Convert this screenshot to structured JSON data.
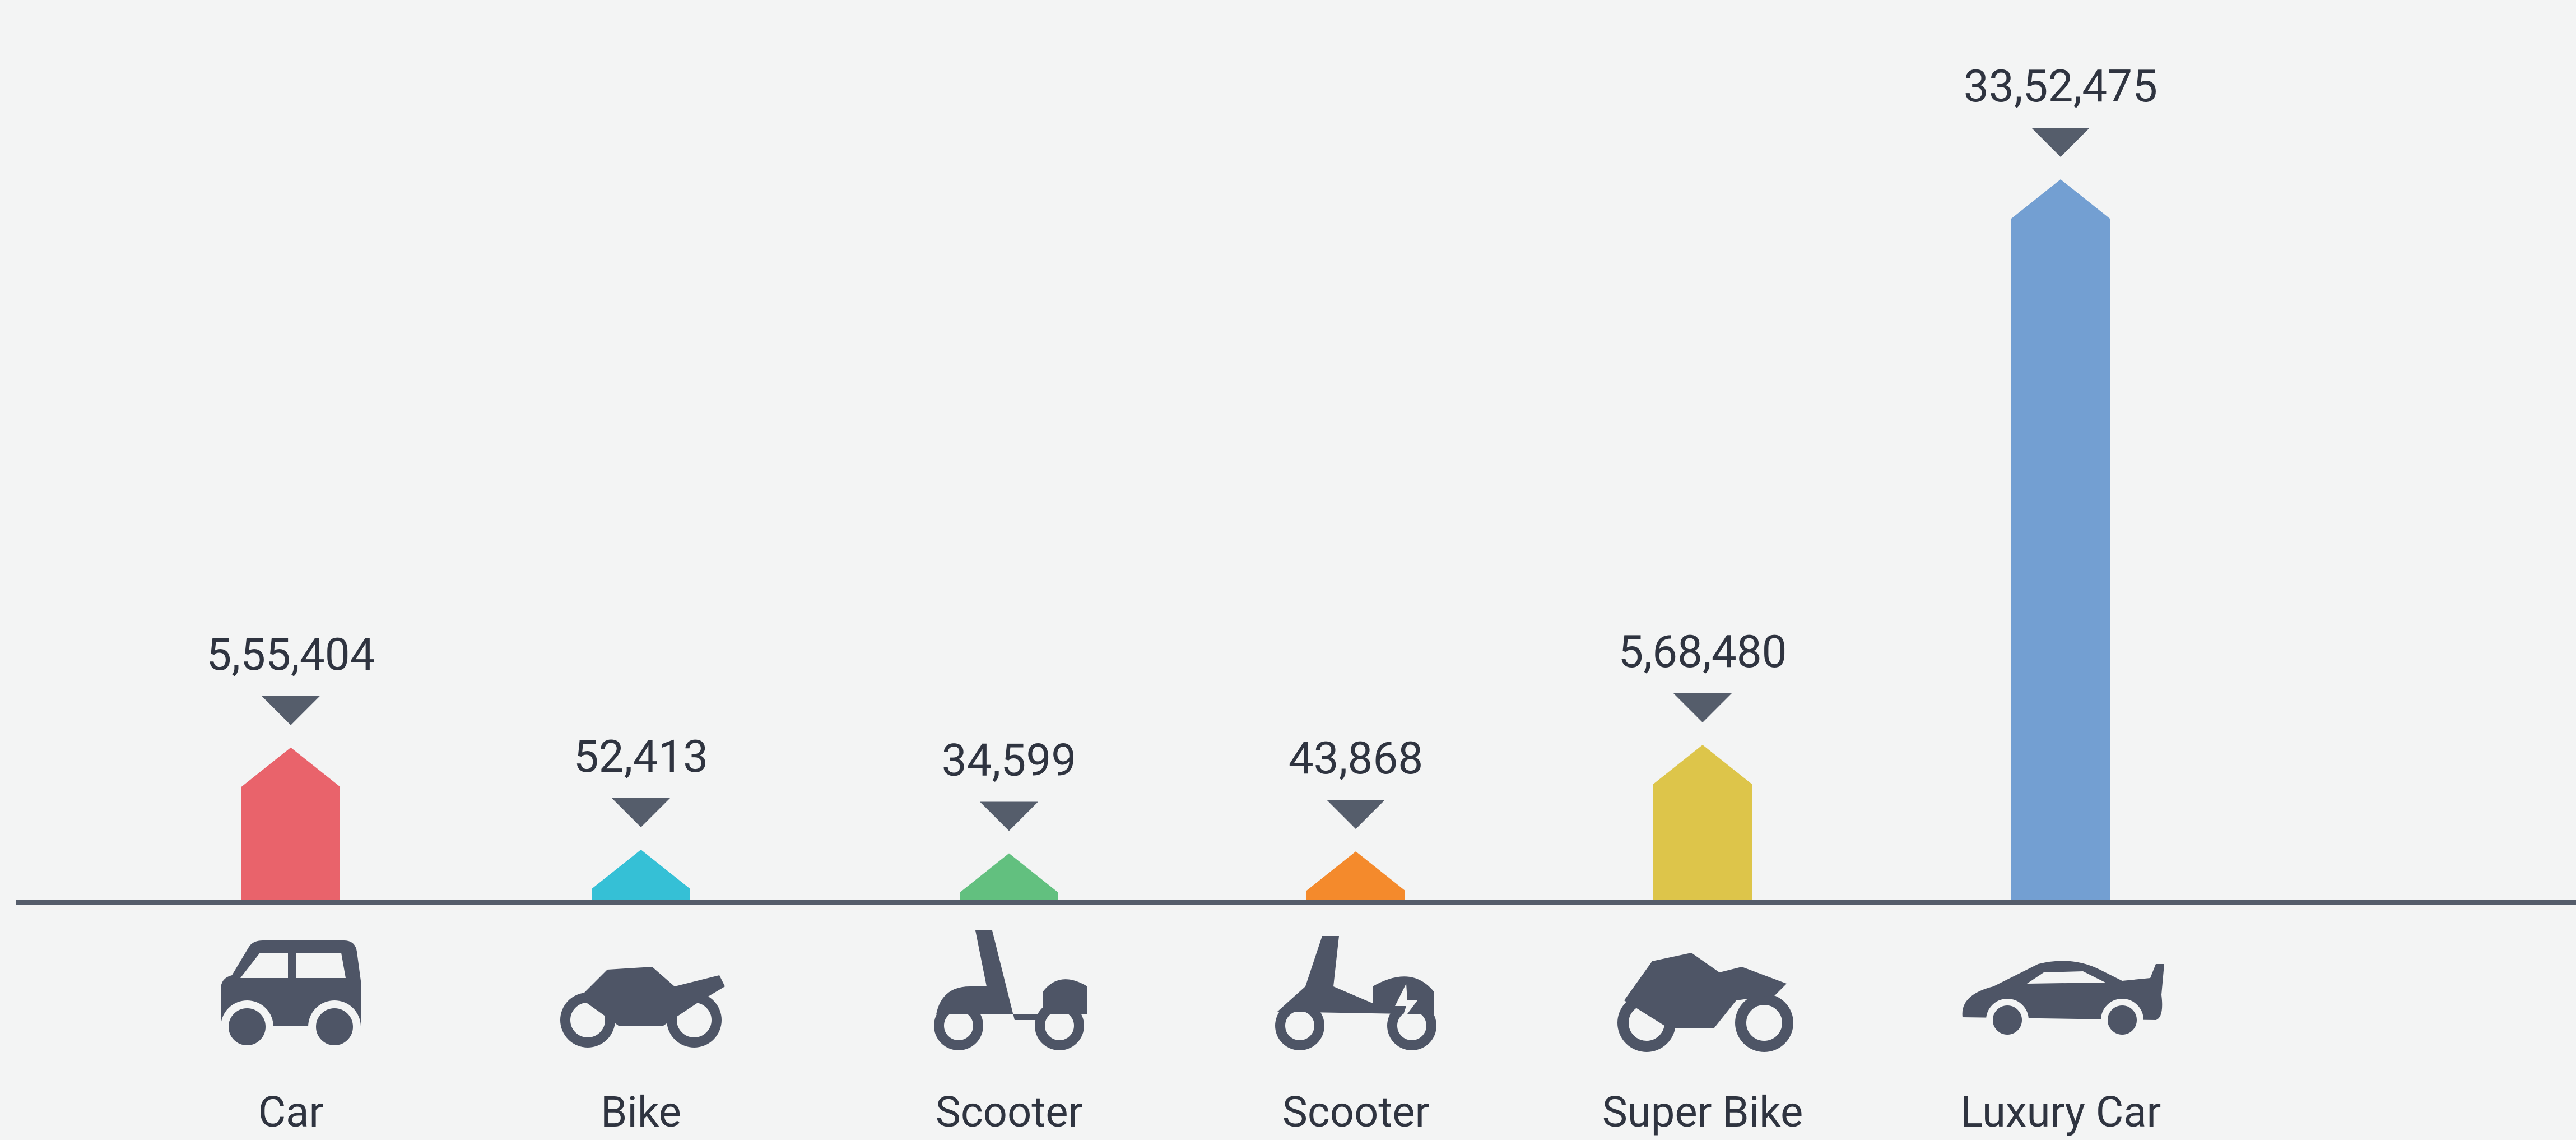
{
  "chart_data": {
    "type": "bar",
    "categories": [
      "Car",
      "Bike",
      "Scooter",
      "Scooter",
      "Super Bike",
      "Luxury Car"
    ],
    "values": [
      555404,
      52413,
      34599,
      43868,
      568480,
      3352475
    ],
    "value_labels": [
      "5,55,404",
      "52,413",
      "34,599",
      "43,868",
      "5,68,480",
      "33,52,475"
    ],
    "colors": [
      "#e9636b",
      "#35c0d6",
      "#62c07f",
      "#f48a2c",
      "#ddc54a",
      "#739fd2"
    ]
  }
}
